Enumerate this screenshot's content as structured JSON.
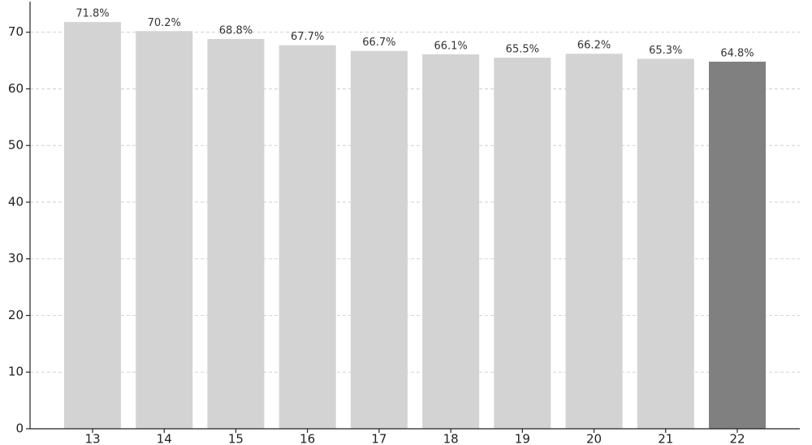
{
  "chart_data": {
    "type": "bar",
    "categories": [
      "13",
      "14",
      "15",
      "16",
      "17",
      "18",
      "19",
      "20",
      "21",
      "22"
    ],
    "values": [
      71.8,
      70.2,
      68.8,
      67.7,
      66.7,
      66.1,
      65.5,
      66.2,
      65.3,
      64.8
    ],
    "value_labels": [
      "71.8%",
      "70.2%",
      "68.8%",
      "67.7%",
      "66.7%",
      "66.1%",
      "65.5%",
      "66.2%",
      "65.3%",
      "64.8%"
    ],
    "colors": [
      "#d3d3d3",
      "#d3d3d3",
      "#d3d3d3",
      "#d3d3d3",
      "#d3d3d3",
      "#d3d3d3",
      "#d3d3d3",
      "#d3d3d3",
      "#d3d3d3",
      "#808080"
    ],
    "ylim": [
      0,
      75.4
    ],
    "yticks": [
      0,
      10,
      20,
      30,
      40,
      50,
      60,
      70
    ],
    "grid": true
  }
}
